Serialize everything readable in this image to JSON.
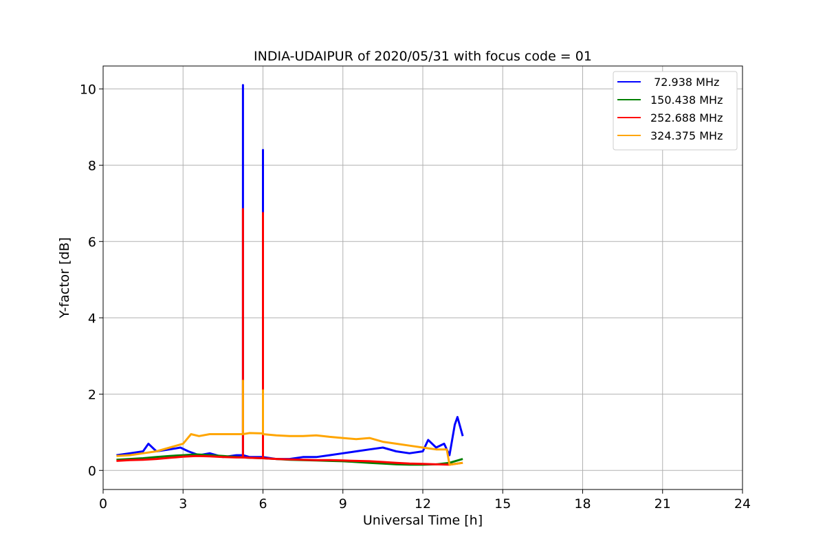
{
  "chart_data": {
    "type": "line",
    "title": "INDIA-UDAIPUR of 2020/05/31 with focus code = 01",
    "xlabel": "Universal Time [h]",
    "ylabel": "Y-factor [dB]",
    "xlim": [
      0,
      24
    ],
    "ylim": [
      -0.5,
      10.6
    ],
    "xticks": [
      0,
      3,
      6,
      9,
      12,
      15,
      18,
      21,
      24
    ],
    "yticks": [
      0,
      2,
      4,
      6,
      8,
      10
    ],
    "xtick_labels": [
      "0",
      "3",
      "6",
      "9",
      "12",
      "15",
      "18",
      "21",
      "24"
    ],
    "ytick_labels": [
      "0",
      "2",
      "4",
      "6",
      "8",
      "10"
    ],
    "grid": true,
    "legend_position": "top-right",
    "series": [
      {
        "name": " 72.938 MHz",
        "color": "#0000ff",
        "x": [
          0.5,
          1.0,
          1.5,
          1.7,
          2.0,
          2.5,
          2.9,
          3.2,
          3.6,
          4.0,
          4.5,
          5.0,
          5.25,
          5.25,
          5.25,
          5.5,
          6.0,
          6.0,
          6.0,
          6.5,
          7.0,
          7.5,
          8.0,
          8.5,
          9.0,
          9.5,
          10.0,
          10.5,
          11.0,
          11.5,
          12.0,
          12.2,
          12.5,
          12.8,
          13.0,
          13.2,
          13.3,
          13.5
        ],
        "y": [
          0.4,
          0.45,
          0.5,
          0.7,
          0.5,
          0.55,
          0.6,
          0.5,
          0.4,
          0.45,
          0.35,
          0.4,
          0.4,
          10.1,
          0.4,
          0.35,
          0.35,
          8.4,
          0.35,
          0.3,
          0.3,
          0.35,
          0.35,
          0.4,
          0.45,
          0.5,
          0.55,
          0.6,
          0.5,
          0.45,
          0.5,
          0.8,
          0.6,
          0.7,
          0.4,
          1.2,
          1.4,
          0.9
        ]
      },
      {
        "name": "150.438 MHz",
        "color": "#008000",
        "x": [
          0.5,
          1.0,
          1.5,
          2.0,
          2.5,
          3.0,
          3.5,
          4.0,
          4.5,
          5.0,
          5.5,
          6.0,
          6.5,
          7.0,
          7.5,
          8.0,
          8.5,
          9.0,
          9.5,
          10.0,
          10.5,
          11.0,
          11.5,
          12.0,
          12.5,
          13.0,
          13.5
        ],
        "y": [
          0.28,
          0.3,
          0.32,
          0.35,
          0.38,
          0.4,
          0.42,
          0.4,
          0.38,
          0.35,
          0.33,
          0.32,
          0.3,
          0.28,
          0.27,
          0.26,
          0.25,
          0.24,
          0.22,
          0.2,
          0.18,
          0.16,
          0.15,
          0.15,
          0.16,
          0.2,
          0.3
        ]
      },
      {
        "name": "252.688 MHz",
        "color": "#ff0000",
        "x": [
          0.5,
          1.0,
          1.5,
          2.0,
          2.5,
          3.0,
          3.5,
          4.0,
          4.5,
          5.0,
          5.25,
          5.25,
          5.25,
          5.5,
          6.0,
          6.0,
          6.0,
          6.5,
          7.0,
          7.5,
          8.0,
          8.5,
          9.0,
          9.5,
          10.0,
          10.5,
          11.0,
          11.5,
          12.0,
          12.5,
          13.0,
          13.5
        ],
        "y": [
          0.25,
          0.27,
          0.28,
          0.3,
          0.33,
          0.36,
          0.38,
          0.37,
          0.35,
          0.34,
          0.34,
          6.85,
          0.34,
          0.33,
          0.32,
          6.75,
          0.32,
          0.3,
          0.29,
          0.28,
          0.27,
          0.27,
          0.26,
          0.25,
          0.24,
          0.22,
          0.2,
          0.18,
          0.17,
          0.16,
          0.15,
          0.2
        ]
      },
      {
        "name": "324.375 MHz",
        "color": "#ffa500",
        "x": [
          0.5,
          1.0,
          1.5,
          2.0,
          2.5,
          3.0,
          3.3,
          3.6,
          4.0,
          4.5,
          5.0,
          5.25,
          5.25,
          5.25,
          5.5,
          6.0,
          6.0,
          6.0,
          6.5,
          7.0,
          7.5,
          8.0,
          8.5,
          9.0,
          9.5,
          10.0,
          10.5,
          11.0,
          11.5,
          12.0,
          12.5,
          12.9,
          13.0,
          13.5
        ],
        "y": [
          0.38,
          0.4,
          0.45,
          0.5,
          0.6,
          0.7,
          0.95,
          0.9,
          0.95,
          0.95,
          0.95,
          0.95,
          2.35,
          0.95,
          0.98,
          0.97,
          2.1,
          0.95,
          0.92,
          0.9,
          0.9,
          0.92,
          0.88,
          0.85,
          0.82,
          0.85,
          0.75,
          0.7,
          0.65,
          0.6,
          0.55,
          0.55,
          0.15,
          0.2
        ]
      }
    ]
  }
}
